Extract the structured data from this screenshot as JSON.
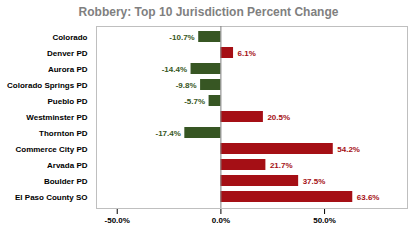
{
  "chart_data": {
    "type": "bar",
    "orientation": "horizontal",
    "title": "Robbery: Top 10 Jurisdiction Percent Change",
    "categories": [
      "Colorado",
      "Denver PD",
      "Aurora PD",
      "Colorado Springs PD",
      "Pueblo PD",
      "Westminster PD",
      "Thornton PD",
      "Commerce City PD",
      "Arvada PD",
      "Boulder PD",
      "El Paso County SO"
    ],
    "values": [
      -10.7,
      6.1,
      -14.4,
      -9.8,
      -5.7,
      20.5,
      -17.4,
      54.2,
      21.7,
      37.5,
      63.6
    ],
    "value_labels": [
      "-10.7%",
      "6.1%",
      "-14.4%",
      "-9.8%",
      "-5.7%",
      "20.5%",
      "-17.4%",
      "54.2%",
      "21.7%",
      "37.5%",
      "63.6%"
    ],
    "colors": [
      "#375623",
      "#a50f15",
      "#375623",
      "#375623",
      "#375623",
      "#a50f15",
      "#375623",
      "#a50f15",
      "#a50f15",
      "#a50f15",
      "#a50f15"
    ],
    "xlim": [
      -60,
      90
    ],
    "xticks": [
      {
        "value": -50,
        "label": "-50.0%"
      },
      {
        "value": 0,
        "label": "0.0%"
      },
      {
        "value": 50,
        "label": "50.0%"
      }
    ],
    "data_labels": true,
    "grid": false
  }
}
